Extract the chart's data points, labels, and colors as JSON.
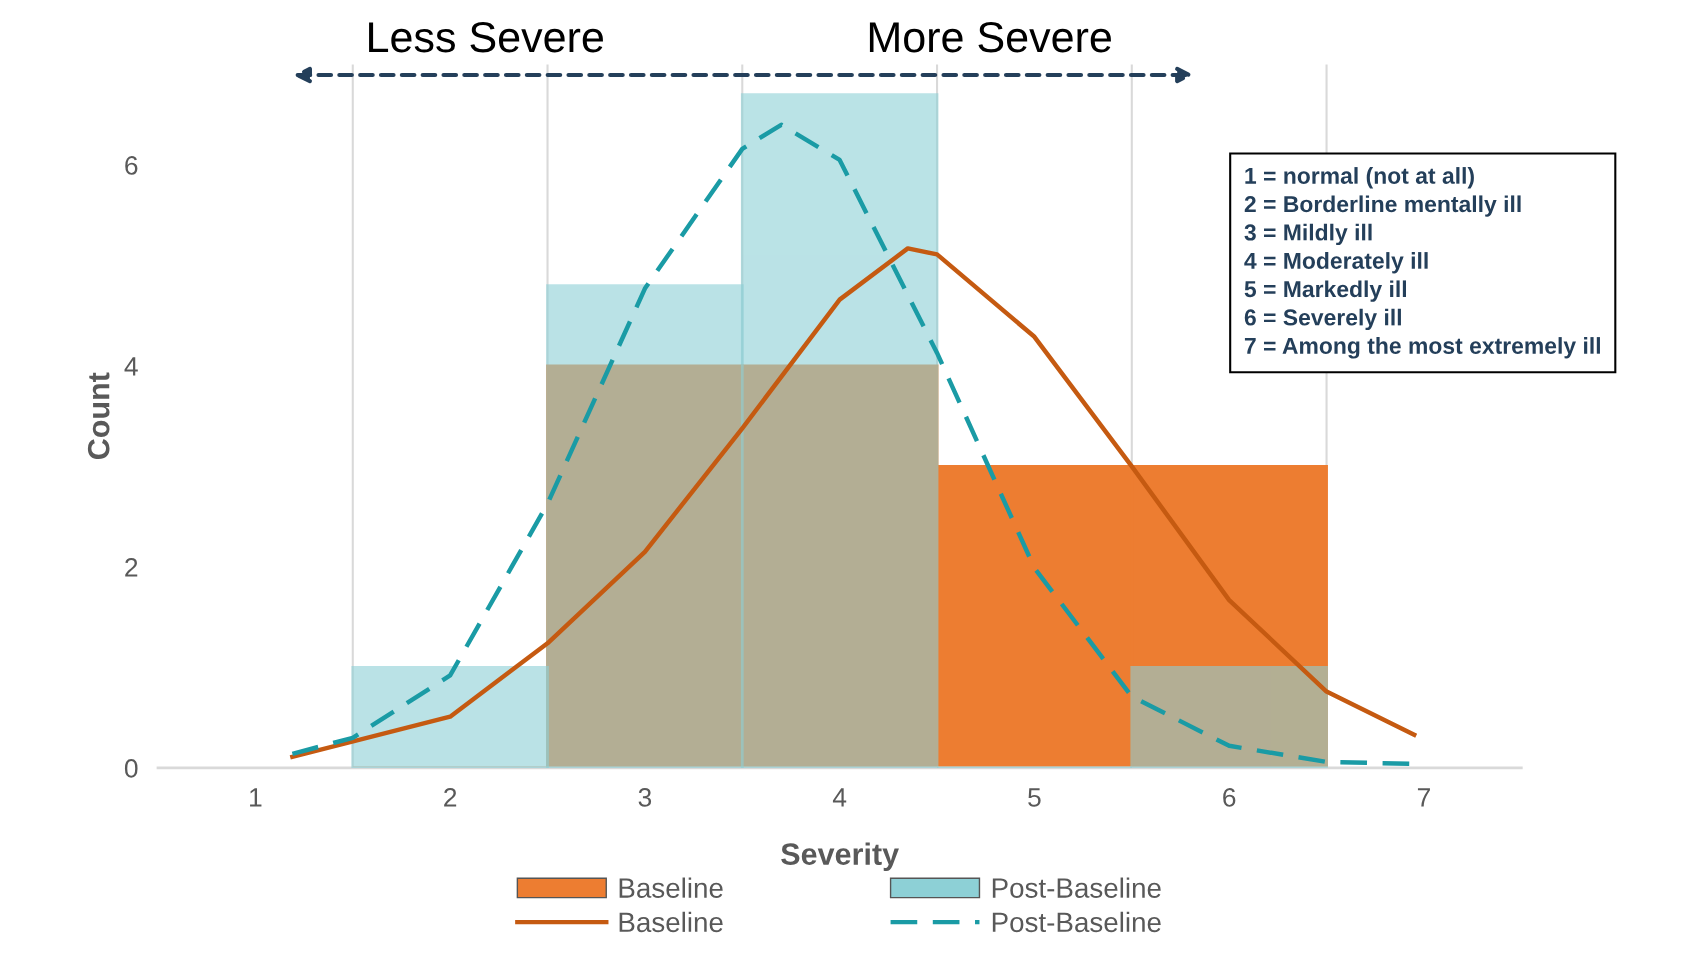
{
  "chart_data": {
    "type": "histogram",
    "xlabel": "Severity",
    "ylabel": "Count",
    "bins": [
      1.5,
      2.5,
      3.5,
      4.5,
      5.5,
      6.5
    ],
    "series": [
      {
        "name": "Baseline",
        "color": "#ed7d31",
        "values": [
          0,
          4,
          4,
          3,
          3
        ]
      },
      {
        "name": "Post-Baseline",
        "color": "#8dd0d6",
        "values": [
          1,
          4.8,
          6.7,
          0,
          1
        ]
      },
      {
        "name": "Baseline",
        "type": "line",
        "line_style": "solid",
        "color": "#c55a11",
        "x": [
          1.19,
          2,
          2.5,
          3,
          3.5,
          4,
          4.35,
          4.5,
          5,
          5.5,
          6,
          6.5,
          6.95
        ],
        "values": [
          0.11,
          0.51,
          1.24,
          2.15,
          3.38,
          4.66,
          5.17,
          5.11,
          4.29,
          3.0,
          1.67,
          0.76,
          0.33
        ]
      },
      {
        "name": "Post-Baseline",
        "type": "line",
        "line_style": "dashed",
        "color": "#1a9ba5",
        "x": [
          1.19,
          1.5,
          2,
          2.5,
          3,
          3.5,
          3.7,
          4,
          4.5,
          5,
          5.5,
          6,
          6.5,
          6.95
        ],
        "values": [
          0.14,
          0.3,
          0.92,
          2.63,
          4.77,
          6.16,
          6.4,
          6.05,
          4.13,
          1.99,
          0.71,
          0.22,
          0.06,
          0.04
        ]
      }
    ],
    "xlim": [
      0.5,
      7.5
    ],
    "ylim": [
      0,
      7
    ],
    "xticks": [
      1,
      {
        "value": 1.5,
        "label": null
      },
      2,
      {
        "value": 2.5,
        "label": null
      },
      3,
      {
        "value": 3.5,
        "label": null
      },
      4,
      {
        "value": 4.5,
        "label": null
      },
      5,
      {
        "value": 5.5,
        "label": null
      },
      6,
      {
        "value": 6.5,
        "label": null
      },
      7
    ],
    "yticks": [
      0,
      2,
      4,
      6
    ],
    "grid": "x",
    "legend": "bottom",
    "annotations": [
      "Less Severe",
      "More Severe",
      "1 = normal (not at all)",
      "2 = Borderline mentally ill",
      "3 = Mildly ill",
      "4 = Moderately ill",
      "5 = Markedly ill",
      "6 = Severely ill",
      "7 = Among the most extremely ill"
    ]
  }
}
